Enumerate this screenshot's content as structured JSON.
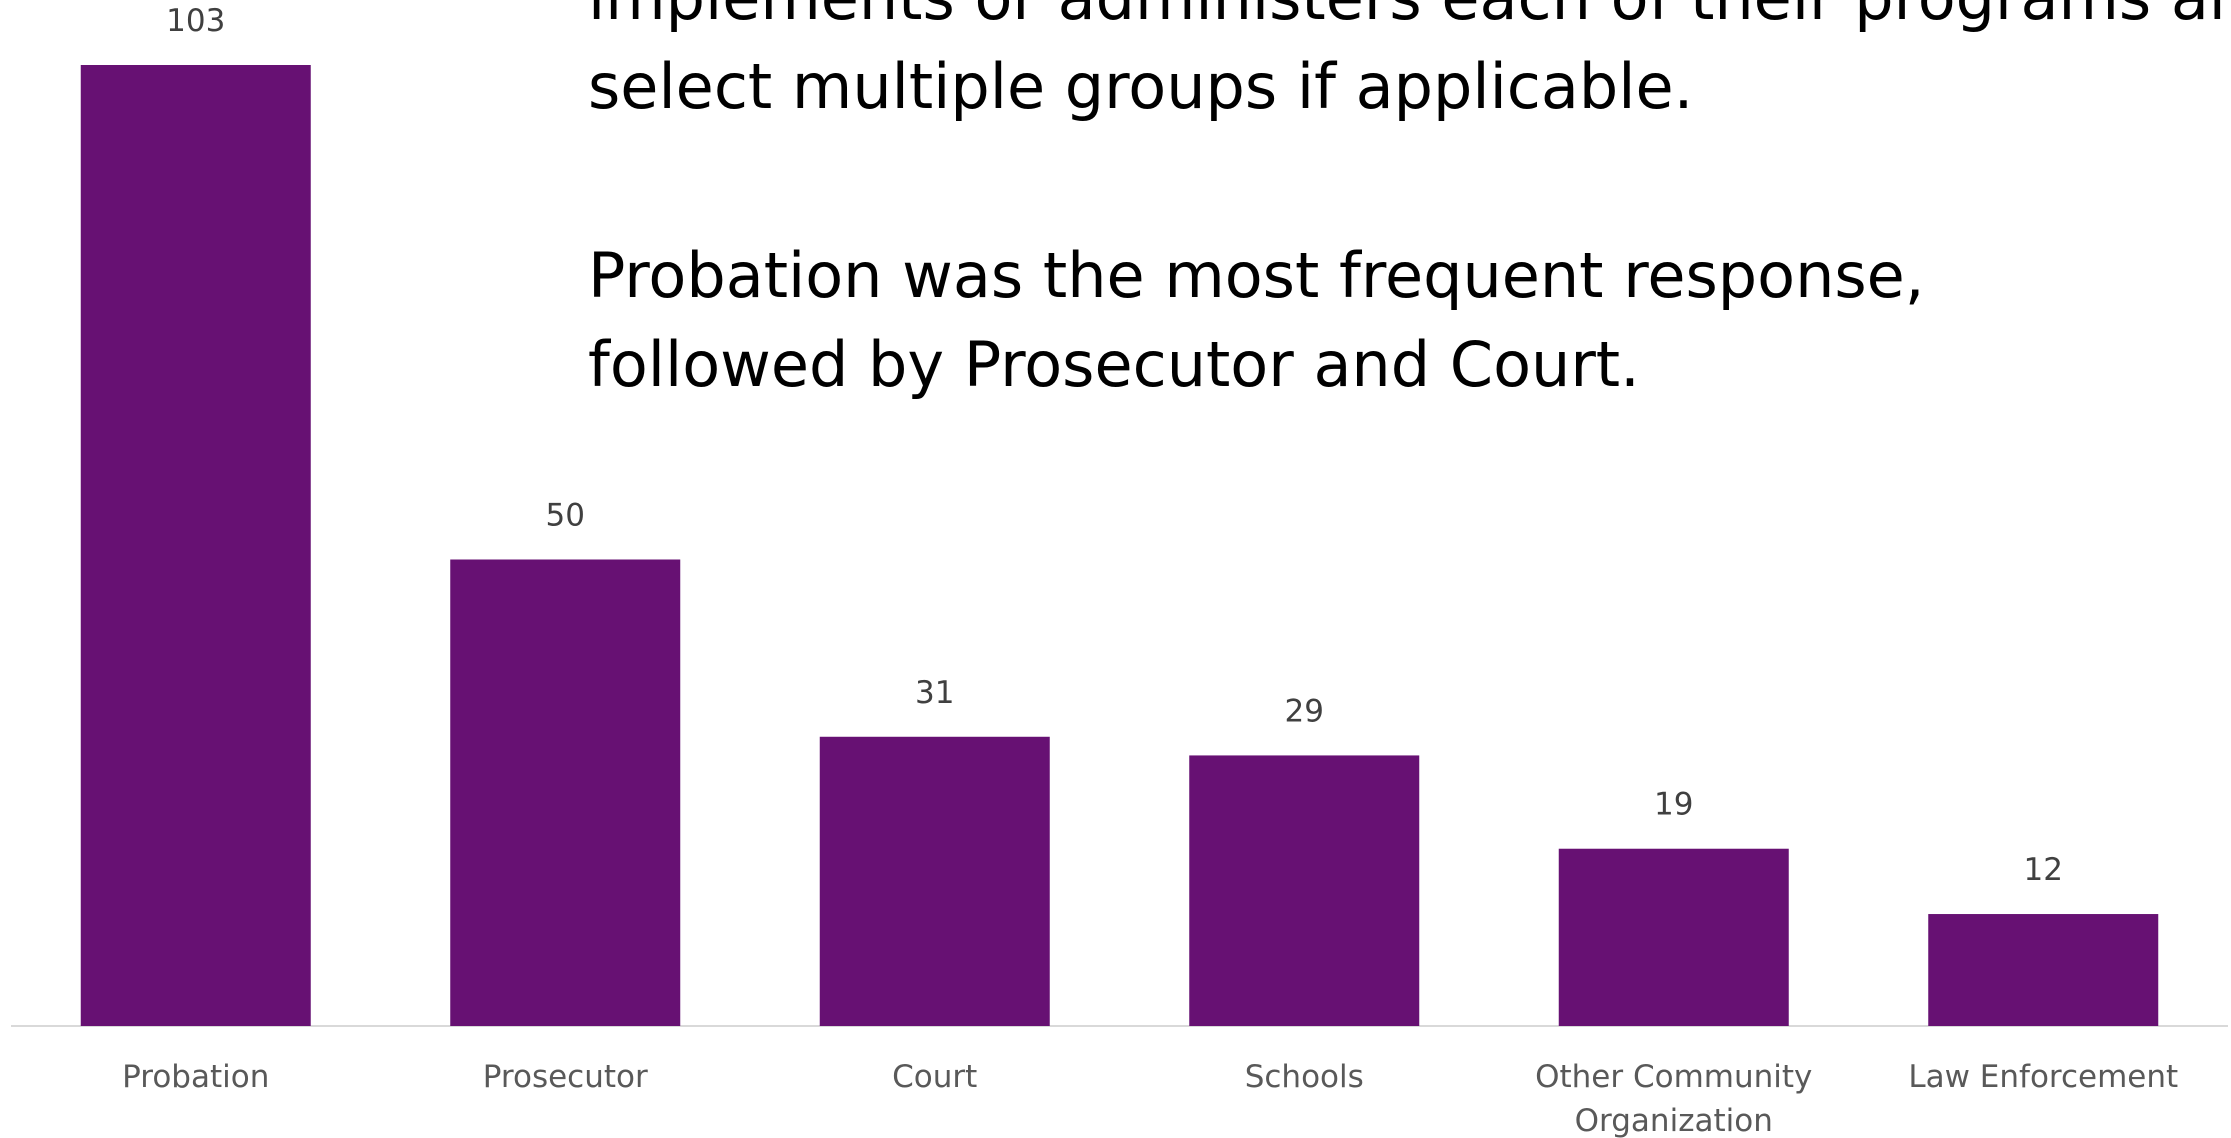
{
  "text": {
    "paragraphs": [
      [
        "implements or administers each of their programs and",
        "select multiple groups if applicable."
      ],
      [
        "Probation was the most frequent response,",
        "followed by Prosecutor and Court."
      ]
    ]
  },
  "chart_data": {
    "type": "bar",
    "categories": [
      "Probation",
      "Prosecutor",
      "Court",
      "Schools",
      "Other Community Organization",
      "Law Enforcement"
    ],
    "values": [
      103,
      50,
      31,
      29,
      19,
      12
    ],
    "color": "#671173"
  }
}
